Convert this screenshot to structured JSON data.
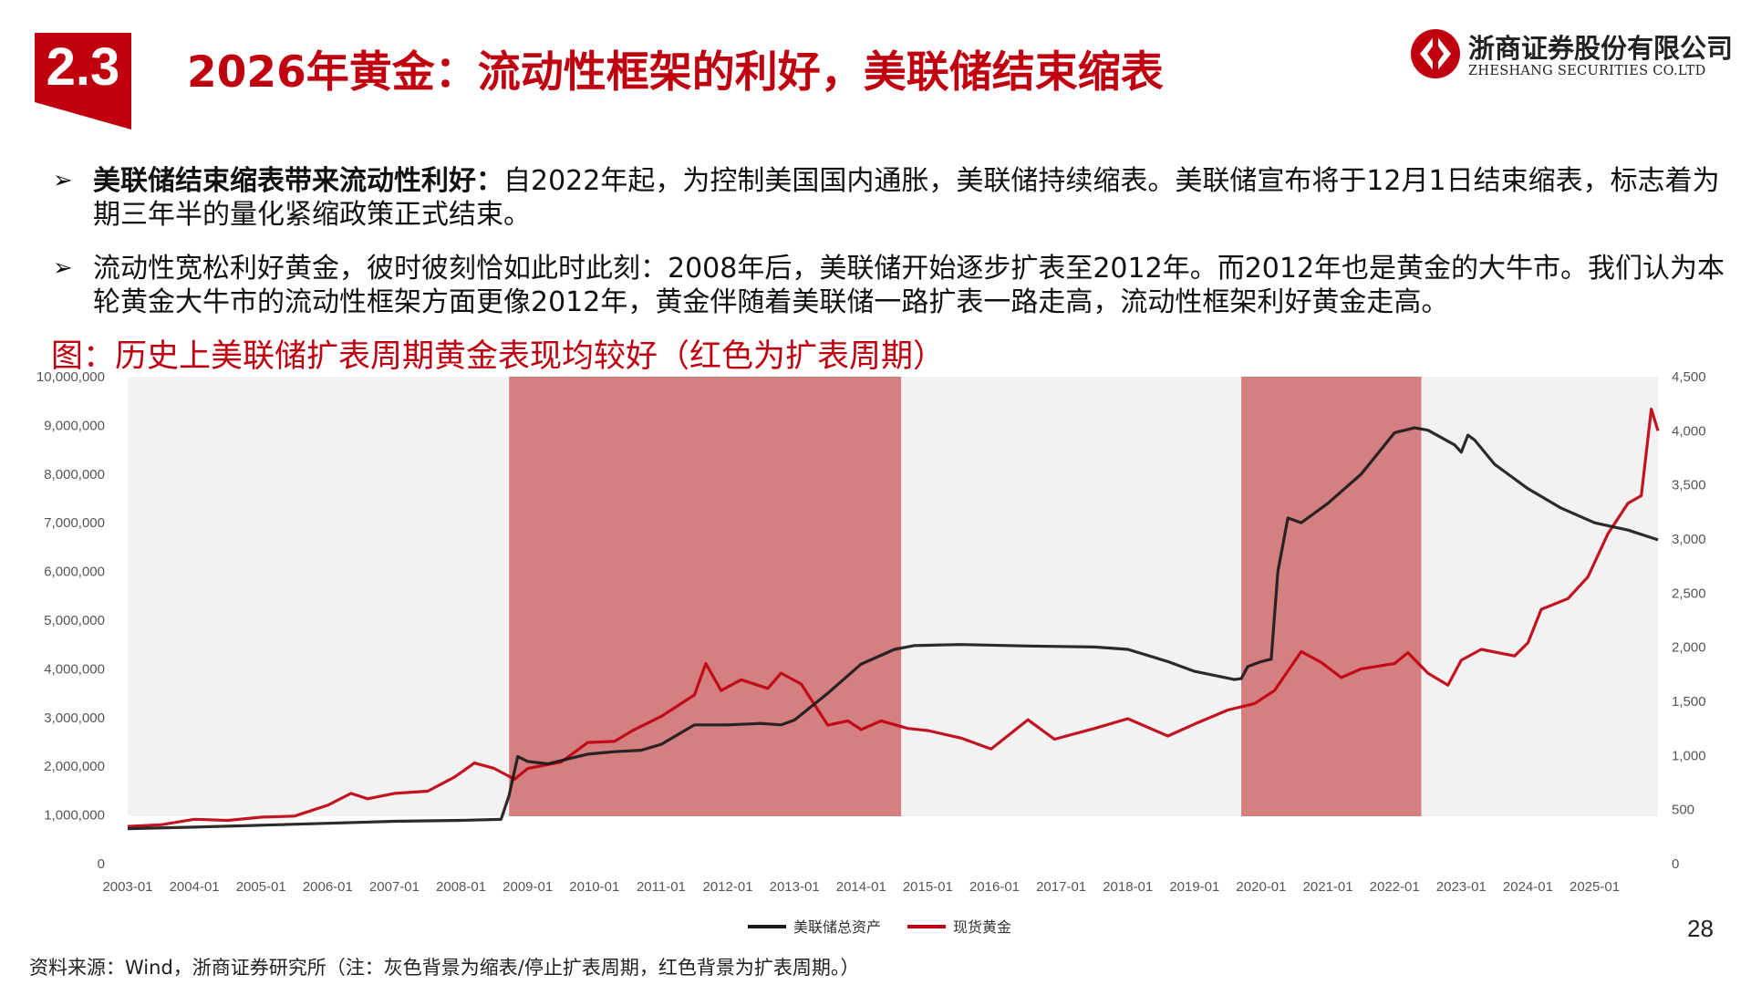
{
  "header": {
    "section_number": "2.3",
    "title": "2026年黄金：流动性框架的利好，美联储结束缩表",
    "logo_name": "浙商证券股份有限公司",
    "logo_en": "ZHESHANG SECURITIES CO.LTD",
    "brand_color": "#c0000e"
  },
  "bullets": [
    {
      "marker": "➢",
      "bold": "美联储结束缩表带来流动性利好：",
      "text": "自2022年起，为控制美国国内通胀，美联储持续缩表。美联储宣布将于12月1日结束缩表，标志着为期三年半的量化紧缩政策正式结束。"
    },
    {
      "marker": "➢",
      "bold": "",
      "text": "流动性宽松利好黄金，彼时彼刻恰如此时此刻：2008年后，美联储开始逐步扩表至2012年。而2012年也是黄金的大牛市。我们认为本轮黄金大牛市的流动性框架方面更像2012年，黄金伴随着美联储一路扩表一路走高，流动性框架利好黄金走高。"
    }
  ],
  "figure_caption": "图：历史上美联储扩表周期黄金表现均较好（红色为扩表周期）",
  "chart_data": {
    "type": "line",
    "title": "",
    "x_ticks": [
      "2003-01",
      "2004-01",
      "2005-01",
      "2006-01",
      "2007-01",
      "2008-01",
      "2009-01",
      "2010-01",
      "2011-01",
      "2012-01",
      "2013-01",
      "2014-01",
      "2015-01",
      "2016-01",
      "2017-01",
      "2018-01",
      "2019-01",
      "2020-01",
      "2021-01",
      "2022-01",
      "2023-01",
      "2024-01",
      "2025-01"
    ],
    "x_range": [
      2003.0,
      2025.95
    ],
    "y_left": {
      "range": [
        0,
        10000000
      ],
      "ticks": [
        "0",
        "1,000,000",
        "2,000,000",
        "3,000,000",
        "4,000,000",
        "5,000,000",
        "6,000,000",
        "7,000,000",
        "8,000,000",
        "9,000,000",
        "10,000,000"
      ]
    },
    "y_right": {
      "range": [
        0,
        4500
      ],
      "ticks": [
        "0",
        "500",
        "1,000",
        "1,500",
        "2,000",
        "2,500",
        "3,000",
        "3,500",
        "4,000",
        "4,500"
      ]
    },
    "background_color": "#f2f2f2",
    "expansion_color": "#d47f80",
    "expansion_periods": [
      [
        2008.72,
        2014.6
      ],
      [
        2019.7,
        2022.4
      ]
    ],
    "series": [
      {
        "name": "美联储总资产",
        "axis": "left",
        "color": "#1a1a1a",
        "points": [
          [
            2003.0,
            720000
          ],
          [
            2004.0,
            750000
          ],
          [
            2005.0,
            790000
          ],
          [
            2006.0,
            830000
          ],
          [
            2007.0,
            870000
          ],
          [
            2008.0,
            890000
          ],
          [
            2008.6,
            910000
          ],
          [
            2008.72,
            1400000
          ],
          [
            2008.85,
            2200000
          ],
          [
            2009.0,
            2100000
          ],
          [
            2009.3,
            2050000
          ],
          [
            2009.6,
            2150000
          ],
          [
            2009.9,
            2250000
          ],
          [
            2010.3,
            2300000
          ],
          [
            2010.7,
            2330000
          ],
          [
            2011.0,
            2450000
          ],
          [
            2011.5,
            2850000
          ],
          [
            2012.0,
            2850000
          ],
          [
            2012.5,
            2880000
          ],
          [
            2012.8,
            2850000
          ],
          [
            2013.0,
            2950000
          ],
          [
            2013.5,
            3500000
          ],
          [
            2014.0,
            4100000
          ],
          [
            2014.5,
            4400000
          ],
          [
            2014.8,
            4480000
          ],
          [
            2015.5,
            4500000
          ],
          [
            2016.5,
            4470000
          ],
          [
            2017.5,
            4450000
          ],
          [
            2018.0,
            4400000
          ],
          [
            2018.6,
            4150000
          ],
          [
            2019.0,
            3950000
          ],
          [
            2019.6,
            3780000
          ],
          [
            2019.7,
            3800000
          ],
          [
            2019.8,
            4050000
          ],
          [
            2020.0,
            4150000
          ],
          [
            2020.15,
            4200000
          ],
          [
            2020.25,
            6000000
          ],
          [
            2020.4,
            7100000
          ],
          [
            2020.6,
            7000000
          ],
          [
            2020.8,
            7200000
          ],
          [
            2021.0,
            7400000
          ],
          [
            2021.5,
            8000000
          ],
          [
            2022.0,
            8850000
          ],
          [
            2022.3,
            8950000
          ],
          [
            2022.5,
            8900000
          ],
          [
            2022.9,
            8600000
          ],
          [
            2023.0,
            8450000
          ],
          [
            2023.1,
            8800000
          ],
          [
            2023.2,
            8700000
          ],
          [
            2023.5,
            8200000
          ],
          [
            2024.0,
            7700000
          ],
          [
            2024.5,
            7300000
          ],
          [
            2025.0,
            7000000
          ],
          [
            2025.5,
            6850000
          ],
          [
            2025.95,
            6650000
          ]
        ]
      },
      {
        "name": "现货黄金",
        "axis": "right",
        "color": "#c0000e",
        "points": [
          [
            2003.0,
            345
          ],
          [
            2003.5,
            360
          ],
          [
            2004.0,
            410
          ],
          [
            2004.5,
            400
          ],
          [
            2005.0,
            430
          ],
          [
            2005.5,
            440
          ],
          [
            2006.0,
            540
          ],
          [
            2006.35,
            650
          ],
          [
            2006.6,
            600
          ],
          [
            2007.0,
            650
          ],
          [
            2007.5,
            670
          ],
          [
            2007.9,
            800
          ],
          [
            2008.2,
            930
          ],
          [
            2008.5,
            880
          ],
          [
            2008.8,
            780
          ],
          [
            2009.0,
            880
          ],
          [
            2009.5,
            940
          ],
          [
            2009.9,
            1120
          ],
          [
            2010.3,
            1130
          ],
          [
            2010.6,
            1240
          ],
          [
            2011.0,
            1360
          ],
          [
            2011.5,
            1560
          ],
          [
            2011.67,
            1850
          ],
          [
            2011.9,
            1600
          ],
          [
            2012.2,
            1700
          ],
          [
            2012.6,
            1620
          ],
          [
            2012.8,
            1760
          ],
          [
            2013.1,
            1660
          ],
          [
            2013.5,
            1280
          ],
          [
            2013.8,
            1320
          ],
          [
            2014.0,
            1240
          ],
          [
            2014.3,
            1320
          ],
          [
            2014.7,
            1250
          ],
          [
            2015.0,
            1230
          ],
          [
            2015.5,
            1160
          ],
          [
            2015.95,
            1060
          ],
          [
            2016.5,
            1330
          ],
          [
            2016.9,
            1150
          ],
          [
            2017.5,
            1250
          ],
          [
            2018.0,
            1340
          ],
          [
            2018.6,
            1180
          ],
          [
            2019.0,
            1290
          ],
          [
            2019.5,
            1420
          ],
          [
            2019.9,
            1480
          ],
          [
            2020.2,
            1600
          ],
          [
            2020.6,
            1960
          ],
          [
            2020.9,
            1860
          ],
          [
            2021.2,
            1720
          ],
          [
            2021.5,
            1800
          ],
          [
            2022.0,
            1850
          ],
          [
            2022.2,
            1950
          ],
          [
            2022.5,
            1760
          ],
          [
            2022.8,
            1650
          ],
          [
            2023.0,
            1880
          ],
          [
            2023.3,
            1980
          ],
          [
            2023.8,
            1920
          ],
          [
            2024.0,
            2040
          ],
          [
            2024.2,
            2350
          ],
          [
            2024.6,
            2450
          ],
          [
            2024.9,
            2650
          ],
          [
            2025.2,
            3050
          ],
          [
            2025.5,
            3330
          ],
          [
            2025.7,
            3400
          ],
          [
            2025.85,
            4200
          ],
          [
            2025.95,
            4000
          ]
        ]
      }
    ],
    "legend": {
      "position": "bottom-center",
      "items": [
        "美联储总资产",
        "现货黄金"
      ]
    }
  },
  "page_number": "28",
  "source_note": "资料来源：Wind，浙商证券研究所（注：灰色背景为缩表/停止扩表周期，红色背景为扩表周期。）"
}
